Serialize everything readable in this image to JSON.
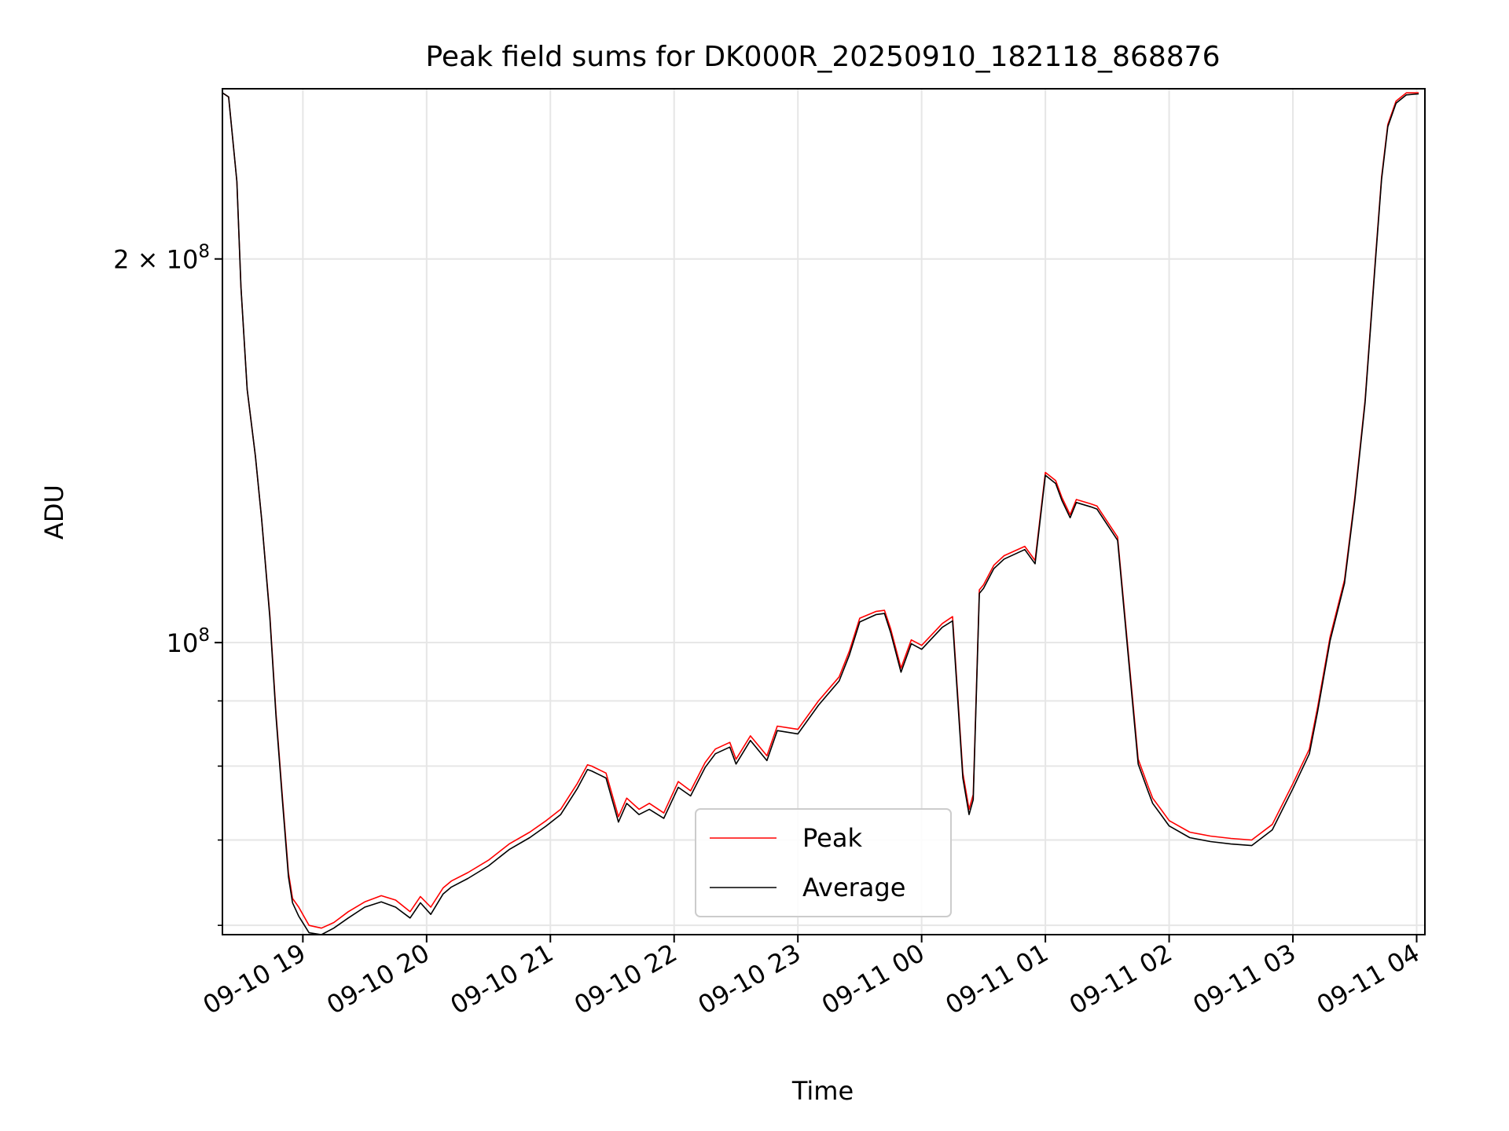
{
  "chart_data": {
    "type": "line",
    "title": "Peak field sums for DK000R_20250910_182118_868876",
    "xlabel": "Time",
    "ylabel": "ADU",
    "y_scale": "log",
    "ylim": [
      59000000,
      272000000
    ],
    "xlim": [
      "2025-09-10 18:21",
      "2025-09-11 04:04"
    ],
    "grid": true,
    "legend_position": "lower center",
    "x_ticks": [
      "09-10 19",
      "09-10 20",
      "09-10 21",
      "09-10 22",
      "09-10 23",
      "09-11 00",
      "09-11 01",
      "09-11 02",
      "09-11 03",
      "09-11 04"
    ],
    "y_ticks": [
      "2 × 10^8",
      "10^8"
    ],
    "y_tick_labels": [
      {
        "base": "2 × 10",
        "exp": "8",
        "value": 200000000
      },
      {
        "base": "10",
        "exp": "8",
        "value": 100000000
      }
    ],
    "y_minor_ticks": [
      60000000,
      70000000,
      80000000,
      90000000
    ],
    "x": [
      "2025-09-10 18:21",
      "2025-09-10 18:24",
      "2025-09-10 18:28",
      "2025-09-10 18:30",
      "2025-09-10 18:33",
      "2025-09-10 18:37",
      "2025-09-10 18:40",
      "2025-09-10 18:44",
      "2025-09-10 18:47",
      "2025-09-10 18:50",
      "2025-09-10 18:53",
      "2025-09-10 18:55",
      "2025-09-10 18:58",
      "2025-09-10 19:03",
      "2025-09-10 19:09",
      "2025-09-10 19:15",
      "2025-09-10 19:22",
      "2025-09-10 19:30",
      "2025-09-10 19:38",
      "2025-09-10 19:45",
      "2025-09-10 19:52",
      "2025-09-10 19:57",
      "2025-09-10 20:02",
      "2025-09-10 20:08",
      "2025-09-10 20:12",
      "2025-09-10 20:20",
      "2025-09-10 20:30",
      "2025-09-10 20:40",
      "2025-09-10 20:50",
      "2025-09-10 20:58",
      "2025-09-10 21:05",
      "2025-09-10 21:13",
      "2025-09-10 21:18",
      "2025-09-10 21:20",
      "2025-09-10 21:27",
      "2025-09-10 21:33",
      "2025-09-10 21:37",
      "2025-09-10 21:43",
      "2025-09-10 21:48",
      "2025-09-10 21:55",
      "2025-09-10 22:02",
      "2025-09-10 22:08",
      "2025-09-10 22:15",
      "2025-09-10 22:20",
      "2025-09-10 22:27",
      "2025-09-10 22:30",
      "2025-09-10 22:37",
      "2025-09-10 22:45",
      "2025-09-10 22:50",
      "2025-09-10 23:00",
      "2025-09-10 23:10",
      "2025-09-10 23:20",
      "2025-09-10 23:25",
      "2025-09-10 23:30",
      "2025-09-10 23:38",
      "2025-09-10 23:42",
      "2025-09-10 23:45",
      "2025-09-10 23:50",
      "2025-09-10 23:55",
      "2025-09-11 00:00",
      "2025-09-11 00:10",
      "2025-09-11 00:15",
      "2025-09-11 00:20",
      "2025-09-11 00:23",
      "2025-09-11 00:25",
      "2025-09-11 00:28",
      "2025-09-11 00:30",
      "2025-09-11 00:35",
      "2025-09-11 00:40",
      "2025-09-11 00:50",
      "2025-09-11 00:55",
      "2025-09-11 01:00",
      "2025-09-11 01:05",
      "2025-09-11 01:08",
      "2025-09-11 01:12",
      "2025-09-11 01:15",
      "2025-09-11 01:22",
      "2025-09-11 01:25",
      "2025-09-11 01:35",
      "2025-09-11 01:45",
      "2025-09-11 01:50",
      "2025-09-11 01:52",
      "2025-09-11 01:56",
      "2025-09-11 02:00",
      "2025-09-11 02:10",
      "2025-09-11 02:20",
      "2025-09-11 02:30",
      "2025-09-11 02:40",
      "2025-09-11 02:50",
      "2025-09-11 03:00",
      "2025-09-11 03:08",
      "2025-09-11 03:12",
      "2025-09-11 03:18",
      "2025-09-11 03:25",
      "2025-09-11 03:30",
      "2025-09-11 03:35",
      "2025-09-11 03:40",
      "2025-09-11 03:43",
      "2025-09-11 03:46",
      "2025-09-11 03:50",
      "2025-09-11 03:55",
      "2025-09-11 04:01"
    ],
    "series": [
      {
        "name": "Peak",
        "color": "#ff0000",
        "values": [
          270000000,
          268000000,
          230000000,
          190000000,
          158000000,
          140000000,
          125000000,
          105000000,
          88000000,
          76000000,
          66000000,
          63000000,
          62000000,
          60000000,
          59700000,
          60300000,
          61500000,
          62600000,
          63300000,
          62800000,
          61500000,
          63200000,
          62000000,
          64200000,
          65000000,
          66000000,
          67500000,
          69500000,
          71000000,
          72500000,
          74000000,
          77500000,
          80200000,
          80000000,
          79000000,
          73000000,
          75500000,
          74000000,
          74800000,
          73500000,
          77800000,
          76500000,
          80500000,
          82500000,
          83500000,
          81000000,
          84500000,
          81500000,
          86000000,
          85500000,
          90000000,
          94000000,
          98500000,
          104500000,
          105800000,
          106000000,
          102500000,
          95500000,
          100500000,
          99500000,
          103500000,
          104800000,
          79000000,
          74000000,
          76000000,
          110000000,
          111000000,
          115000000,
          117000000,
          119000000,
          116000000,
          136000000,
          134000000,
          130000000,
          126000000,
          129500000,
          128500000,
          128000000,
          121000000,
          81000000,
          77000000,
          75500000,
          74000000,
          72500000,
          71000000,
          70500000,
          70200000,
          70000000,
          72000000,
          77500000,
          82500000,
          89000000,
          101000000,
          112000000,
          130000000,
          155000000,
          200000000,
          232000000,
          255000000,
          266000000,
          270000000,
          270000000
        ]
      },
      {
        "name": "Average",
        "color": "#000000",
        "values": [
          270000000,
          268000000,
          230000000,
          190000000,
          158000000,
          140000000,
          125000000,
          104500000,
          87500000,
          75500000,
          65500000,
          62500000,
          61000000,
          59200000,
          59000000,
          59700000,
          60800000,
          62000000,
          62600000,
          62000000,
          60800000,
          62500000,
          61200000,
          63500000,
          64300000,
          65300000,
          66800000,
          68800000,
          70300000,
          71800000,
          73300000,
          76800000,
          79500000,
          79300000,
          78300000,
          72300000,
          74800000,
          73300000,
          74000000,
          72800000,
          77000000,
          75800000,
          79800000,
          81800000,
          82800000,
          80300000,
          83800000,
          80800000,
          85300000,
          84800000,
          89300000,
          93300000,
          97800000,
          103800000,
          105200000,
          105400000,
          101800000,
          94800000,
          99800000,
          98800000,
          102800000,
          104000000,
          78300000,
          73300000,
          75300000,
          109300000,
          110300000,
          114300000,
          116300000,
          118300000,
          115300000,
          135300000,
          133300000,
          129300000,
          125300000,
          128800000,
          127800000,
          127300000,
          120300000,
          80300000,
          76300000,
          74800000,
          73300000,
          71800000,
          70300000,
          69800000,
          69500000,
          69300000,
          71300000,
          76800000,
          81800000,
          88300000,
          100300000,
          111300000,
          129300000,
          154300000,
          199000000,
          231000000,
          254000000,
          265000000,
          269000000,
          269500000
        ]
      }
    ]
  }
}
